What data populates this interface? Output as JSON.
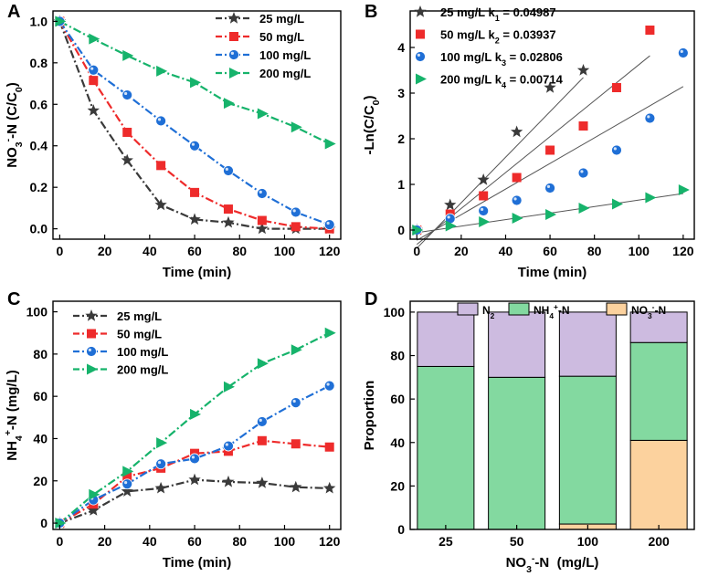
{
  "chart_data": [
    {
      "panel_label": "A",
      "type": "line",
      "xlabel": "Time (min)",
      "ylabel": "NO3−-N (C/C0)",
      "ylabel_parts": [
        "NO",
        "3",
        "-",
        "-N (C/C",
        "0",
        ")"
      ],
      "xlim": [
        -3,
        125
      ],
      "ylim": [
        -0.05,
        1.05
      ],
      "xticks": [
        0,
        20,
        40,
        60,
        80,
        100,
        120
      ],
      "yticks": [
        0.0,
        0.2,
        0.4,
        0.6,
        0.8,
        1.0
      ],
      "ytick_labels": [
        "0.0",
        "0.2",
        "0.4",
        "0.6",
        "0.8",
        "1.0"
      ],
      "series": [
        {
          "name": "25 mg/L",
          "color": "#3a3a3a",
          "marker": "star",
          "x": [
            0,
            15,
            30,
            45,
            60,
            75,
            90,
            105,
            120
          ],
          "values": [
            1.0,
            0.57,
            0.33,
            0.115,
            0.045,
            0.03,
            0.0,
            0.0,
            0.0
          ]
        },
        {
          "name": "50 mg/L",
          "color": "#ee2b2b",
          "marker": "square",
          "x": [
            0,
            15,
            30,
            45,
            60,
            75,
            90,
            105,
            120
          ],
          "values": [
            1.0,
            0.715,
            0.465,
            0.305,
            0.175,
            0.095,
            0.04,
            0.01,
            0.0
          ]
        },
        {
          "name": "100 mg/L",
          "color": "#1f6fd6",
          "marker": "circle",
          "x": [
            0,
            15,
            30,
            45,
            60,
            75,
            90,
            105,
            120
          ],
          "values": [
            1.0,
            0.765,
            0.645,
            0.52,
            0.4,
            0.28,
            0.17,
            0.08,
            0.02
          ]
        },
        {
          "name": "200 mg/L",
          "color": "#16b36b",
          "marker": "triangle",
          "x": [
            0,
            15,
            30,
            45,
            60,
            75,
            90,
            105,
            120
          ],
          "values": [
            1.0,
            0.915,
            0.835,
            0.76,
            0.705,
            0.605,
            0.555,
            0.49,
            0.41
          ]
        }
      ]
    },
    {
      "panel_label": "B",
      "type": "scatter",
      "xlabel": "Time (min)",
      "ylabel": "-Ln(C/C0)",
      "ylabel_parts": [
        "-Ln(C/C",
        "0",
        ")"
      ],
      "xlim": [
        -3,
        125
      ],
      "ylim": [
        -0.2,
        4.8
      ],
      "xticks": [
        0,
        20,
        40,
        60,
        80,
        100,
        120
      ],
      "yticks": [
        0,
        1,
        2,
        3,
        4
      ],
      "ytick_labels": [
        "0",
        "1",
        "2",
        "3",
        "4"
      ],
      "series": [
        {
          "name": "25 mg/L",
          "k_label": "k1 = 0.04987",
          "k_parts": [
            "k",
            "1",
            " = 0.04987"
          ],
          "k": 0.04987,
          "color": "#3a3a3a",
          "marker": "star",
          "x": [
            0,
            15,
            30,
            45,
            60,
            75
          ],
          "values": [
            0.0,
            0.55,
            1.1,
            2.15,
            3.12,
            3.5
          ],
          "fit_x": [
            0,
            75
          ]
        },
        {
          "name": "50 mg/L",
          "k_label": "k2 = 0.03937",
          "k_parts": [
            "k",
            "2",
            " = 0.03937"
          ],
          "k": 0.03937,
          "color": "#ee2b2b",
          "marker": "square",
          "x": [
            0,
            15,
            30,
            45,
            60,
            75,
            90,
            105
          ],
          "values": [
            0.0,
            0.35,
            0.75,
            1.15,
            1.75,
            2.28,
            3.12,
            4.38
          ],
          "fit_x": [
            0,
            105
          ]
        },
        {
          "name": "100 mg/L",
          "k_label": "k3 = 0.02806",
          "k_parts": [
            "k",
            "3",
            " = 0.02806"
          ],
          "k": 0.02806,
          "color": "#1f6fd6",
          "marker": "circle",
          "x": [
            0,
            15,
            30,
            45,
            60,
            75,
            90,
            105,
            120
          ],
          "values": [
            0.0,
            0.25,
            0.42,
            0.65,
            0.92,
            1.25,
            1.75,
            2.45,
            3.88
          ],
          "fit_x": [
            0,
            120
          ]
        },
        {
          "name": "200 mg/L",
          "k_label": "k4 = 0.00714",
          "k_parts": [
            "k",
            "4",
            " = 0.00714"
          ],
          "k": 0.00714,
          "color": "#16b36b",
          "marker": "triangle",
          "x": [
            0,
            15,
            30,
            45,
            60,
            75,
            90,
            105,
            120
          ],
          "values": [
            0.0,
            0.09,
            0.18,
            0.26,
            0.34,
            0.48,
            0.57,
            0.71,
            0.88
          ],
          "fit_x": [
            0,
            120
          ]
        }
      ]
    },
    {
      "panel_label": "C",
      "type": "line",
      "xlabel": "Time (min)",
      "ylabel": "NH4+-N (mg/L)",
      "ylabel_parts": [
        "NH",
        "4",
        "+",
        "-N (mg/L)"
      ],
      "xlim": [
        -3,
        125
      ],
      "ylim": [
        -3,
        105
      ],
      "xticks": [
        0,
        20,
        40,
        60,
        80,
        100,
        120
      ],
      "yticks": [
        0,
        20,
        40,
        60,
        80,
        100
      ],
      "ytick_labels": [
        "0",
        "20",
        "40",
        "60",
        "80",
        "100"
      ],
      "series": [
        {
          "name": "25 mg/L",
          "color": "#3a3a3a",
          "marker": "star",
          "x": [
            0,
            15,
            30,
            45,
            60,
            75,
            90,
            105,
            120
          ],
          "values": [
            0,
            6,
            15,
            16.5,
            20.5,
            19.5,
            19,
            17,
            16.5
          ]
        },
        {
          "name": "50 mg/L",
          "color": "#ee2b2b",
          "marker": "square",
          "x": [
            0,
            15,
            30,
            45,
            60,
            75,
            90,
            105,
            120
          ],
          "values": [
            0,
            9,
            22,
            26,
            33,
            34,
            39,
            37.5,
            36
          ]
        },
        {
          "name": "100 mg/L",
          "color": "#1f6fd6",
          "marker": "circle",
          "x": [
            0,
            15,
            30,
            45,
            60,
            75,
            90,
            105,
            120
          ],
          "values": [
            0,
            11,
            18.5,
            28,
            30.5,
            36.5,
            48,
            57,
            65
          ]
        },
        {
          "name": "200 mg/L",
          "color": "#16b36b",
          "marker": "triangle",
          "x": [
            0,
            15,
            30,
            45,
            60,
            75,
            90,
            105,
            120
          ],
          "values": [
            0,
            13.5,
            24.5,
            38,
            51.5,
            64.5,
            75.5,
            82,
            90
          ]
        }
      ]
    },
    {
      "panel_label": "D",
      "type": "bar",
      "stacked": true,
      "xlabel": "NO3−-N (mg/L)",
      "xlabel_parts": [
        "NO",
        "3",
        "-",
        "-N  (mg/L)"
      ],
      "ylabel": "Proportion",
      "ylim": [
        0,
        105
      ],
      "yticks": [
        0,
        20,
        40,
        60,
        80,
        100
      ],
      "ytick_labels": [
        "0",
        "20",
        "40",
        "60",
        "80",
        "100"
      ],
      "categories": [
        "25",
        "50",
        "100",
        "200"
      ],
      "legend_labels": [
        "N2",
        "NH4+-N",
        "NO3−-N"
      ],
      "series": [
        {
          "name": "NO3−-N",
          "legend_parts": [
            "NO",
            "3",
            "-",
            "-N"
          ],
          "color": "#fcd29e",
          "values": [
            0,
            0,
            2.5,
            41
          ]
        },
        {
          "name": "NH4+-N",
          "legend_parts": [
            "NH",
            "4",
            "+",
            "-N"
          ],
          "color": "#83d9a0",
          "values": [
            75,
            70,
            68,
            45
          ]
        },
        {
          "name": "N2",
          "legend_parts": [
            "N",
            "2",
            "",
            ""
          ],
          "color": "#cdbbe0",
          "values": [
            25,
            30,
            29.5,
            14
          ]
        }
      ]
    }
  ]
}
